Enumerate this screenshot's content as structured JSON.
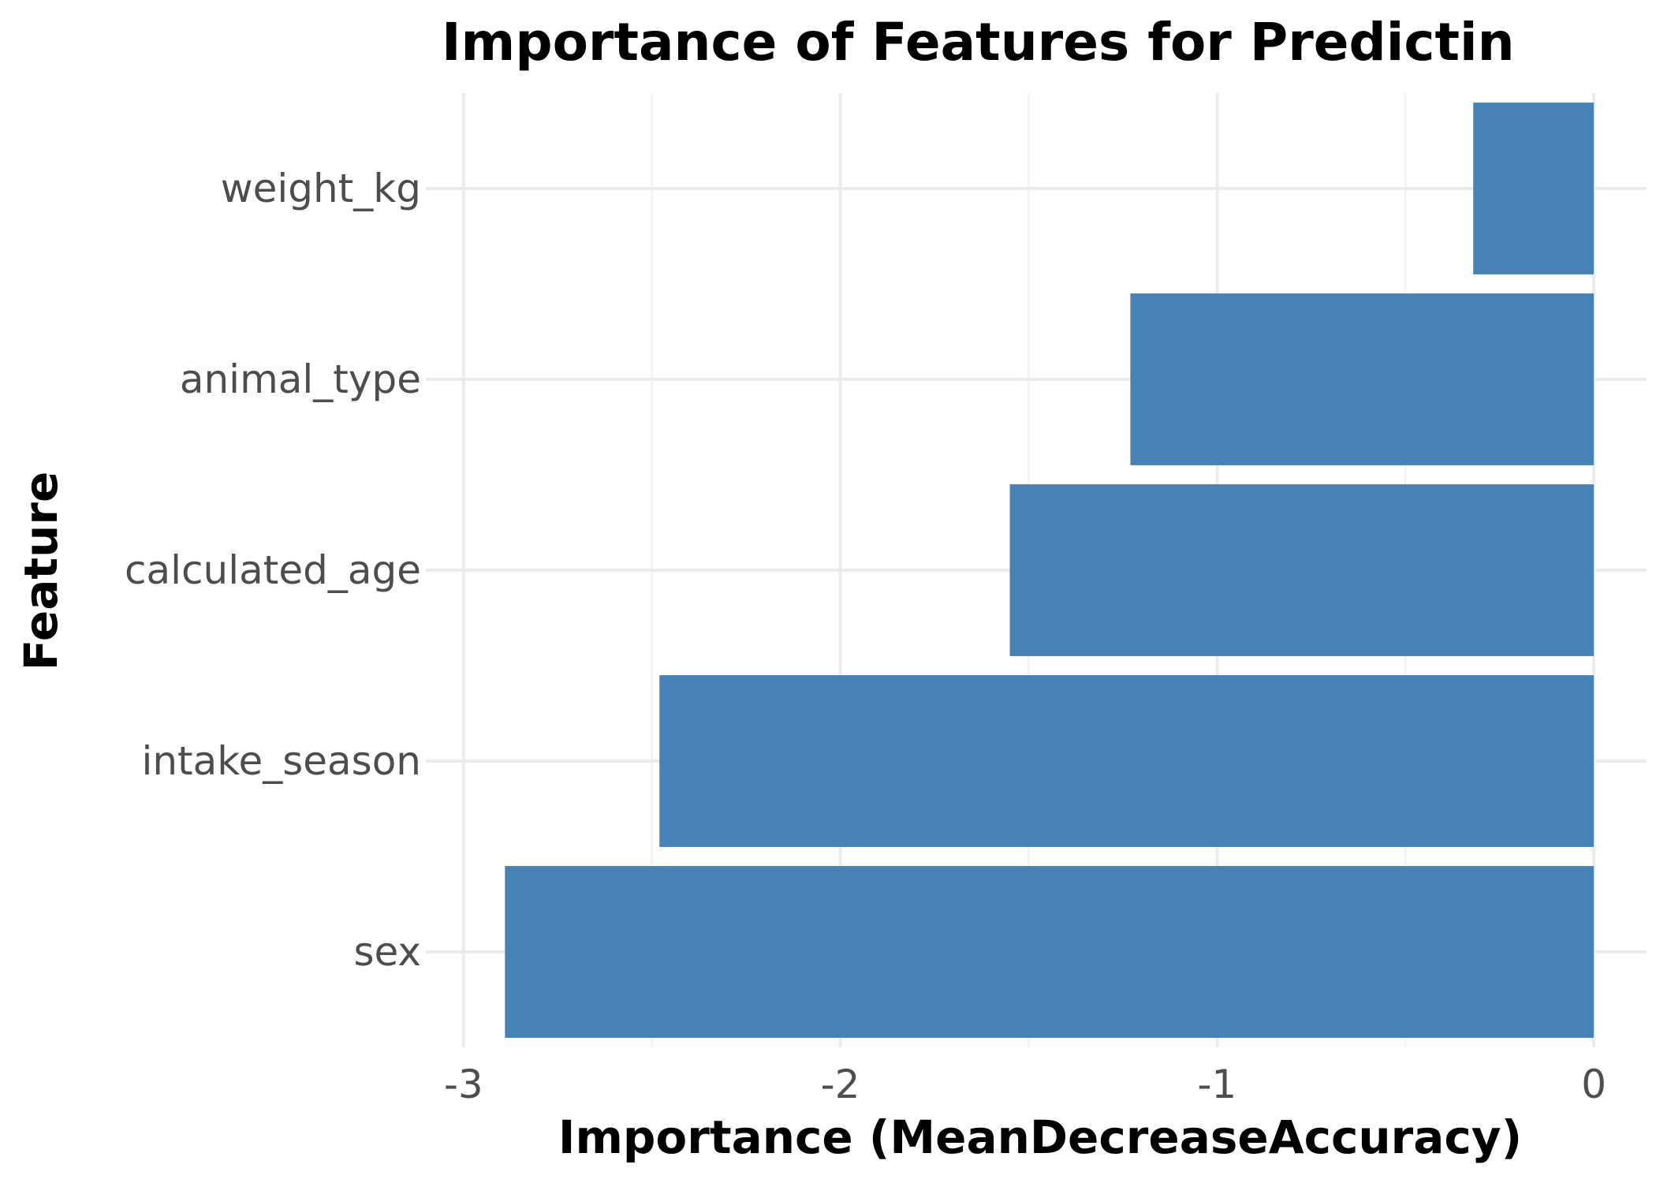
{
  "chart_data": {
    "type": "bar",
    "orientation": "horizontal",
    "title": "Importance of Features for Predictin",
    "xlabel": "Importance (MeanDecreaseAccuracy)",
    "ylabel": "Feature",
    "categories": [
      "weight_kg",
      "animal_type",
      "calculated_age",
      "intake_season",
      "sex"
    ],
    "values": [
      -0.32,
      -1.23,
      -1.55,
      -2.48,
      -2.89
    ],
    "xlim": [
      -3.1,
      0.14
    ],
    "xticks": [
      -3,
      -2,
      -1,
      0
    ],
    "xtick_labels": [
      "-3",
      "-2",
      "-1",
      "0"
    ],
    "grid": true,
    "legend": "none",
    "bar_color": "#4682b4"
  }
}
